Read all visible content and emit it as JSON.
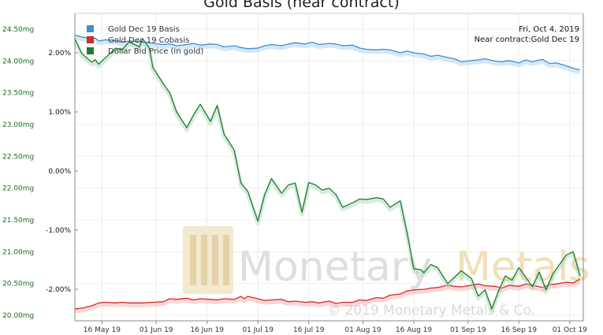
{
  "chart_data": {
    "type": "line",
    "title": "Gold Basis (near contract)",
    "info": [
      "Fri, Oct 4, 2019",
      "Near contract:Gold Dec 19"
    ],
    "watermark": {
      "brand_left": "Monetary",
      "brand_right": "Metals",
      "copyright": "© 2019 Monetary Metals & Co."
    },
    "left_axis": {
      "ticks": [
        "24.50mg",
        "24.00mg",
        "23.50mg",
        "23.00mg",
        "22.50mg",
        "22.00mg",
        "21.50mg",
        "21.00mg",
        "20.50mg",
        "20.00mg"
      ],
      "min": 20.0,
      "max": 24.5,
      "color": "#1e6b2c"
    },
    "right_axis": {
      "ticks": [
        "2.00%",
        "1.00%",
        "0.00%",
        "-1.00%",
        "-2.00%"
      ],
      "values": [
        2,
        1,
        0,
        -1,
        -2
      ],
      "color": "#111111"
    },
    "x_ticks": [
      "16 May 19",
      "01 Jun 19",
      "16 Jun 19",
      "01 Jul 19",
      "16 Jul 19",
      "01 Aug 19",
      "16 Aug 19",
      "01 Sep 19",
      "16 Sep 19",
      "01 Oct 19"
    ],
    "x_range": [
      "2019-05-08",
      "2019-10-05"
    ],
    "series": [
      {
        "name": "Gold Dec 19 Basis",
        "axis": "right",
        "color": "#3b8fd4",
        "points": [
          [
            "2019-05-08",
            2.3
          ],
          [
            "2019-05-10",
            2.27
          ],
          [
            "2019-05-13",
            2.24
          ],
          [
            "2019-05-14",
            2.25
          ],
          [
            "2019-05-15",
            2.2
          ],
          [
            "2019-05-17",
            2.22
          ],
          [
            "2019-05-20",
            2.21
          ],
          [
            "2019-05-22",
            2.18
          ],
          [
            "2019-05-24",
            2.2
          ],
          [
            "2019-05-28",
            2.19
          ],
          [
            "2019-05-31",
            2.16
          ],
          [
            "2019-06-03",
            2.14
          ],
          [
            "2019-06-05",
            2.15
          ],
          [
            "2019-06-07",
            2.12
          ],
          [
            "2019-06-10",
            2.14
          ],
          [
            "2019-06-12",
            2.16
          ],
          [
            "2019-06-14",
            2.13
          ],
          [
            "2019-06-17",
            2.15
          ],
          [
            "2019-06-19",
            2.14
          ],
          [
            "2019-06-21",
            2.1
          ],
          [
            "2019-06-24",
            2.12
          ],
          [
            "2019-06-26",
            2.09
          ],
          [
            "2019-06-28",
            2.07
          ],
          [
            "2019-07-01",
            2.08
          ],
          [
            "2019-07-03",
            2.12
          ],
          [
            "2019-07-05",
            2.14
          ],
          [
            "2019-07-08",
            2.12
          ],
          [
            "2019-07-10",
            2.15
          ],
          [
            "2019-07-12",
            2.17
          ],
          [
            "2019-07-15",
            2.15
          ],
          [
            "2019-07-17",
            2.18
          ],
          [
            "2019-07-19",
            2.14
          ],
          [
            "2019-07-22",
            2.16
          ],
          [
            "2019-07-24",
            2.15
          ],
          [
            "2019-07-26",
            2.12
          ],
          [
            "2019-07-29",
            2.13
          ],
          [
            "2019-07-31",
            2.08
          ],
          [
            "2019-08-02",
            2.06
          ],
          [
            "2019-08-05",
            2.05
          ],
          [
            "2019-08-07",
            2.06
          ],
          [
            "2019-08-09",
            2.05
          ],
          [
            "2019-08-12",
            2.0
          ],
          [
            "2019-08-14",
            2.03
          ],
          [
            "2019-08-16",
            2.0
          ],
          [
            "2019-08-19",
            1.98
          ],
          [
            "2019-08-21",
            1.94
          ],
          [
            "2019-08-23",
            1.96
          ],
          [
            "2019-08-26",
            1.92
          ],
          [
            "2019-08-28",
            1.9
          ],
          [
            "2019-08-30",
            1.85
          ],
          [
            "2019-09-02",
            1.87
          ],
          [
            "2019-09-04",
            1.88
          ],
          [
            "2019-09-06",
            1.9
          ],
          [
            "2019-09-09",
            1.86
          ],
          [
            "2019-09-11",
            1.85
          ],
          [
            "2019-09-13",
            1.87
          ],
          [
            "2019-09-16",
            1.83
          ],
          [
            "2019-09-18",
            1.88
          ],
          [
            "2019-09-20",
            1.85
          ],
          [
            "2019-09-23",
            1.89
          ],
          [
            "2019-09-25",
            1.82
          ],
          [
            "2019-09-27",
            1.83
          ],
          [
            "2019-09-30",
            1.78
          ],
          [
            "2019-10-02",
            1.74
          ],
          [
            "2019-10-04",
            1.71
          ]
        ]
      },
      {
        "name": "Gold Dec 19 Cobasis",
        "axis": "right",
        "color": "#d32a2a",
        "points": [
          [
            "2019-05-08",
            -2.33
          ],
          [
            "2019-05-10",
            -2.32
          ],
          [
            "2019-05-13",
            -2.28
          ],
          [
            "2019-05-15",
            -2.23
          ],
          [
            "2019-05-17",
            -2.22
          ],
          [
            "2019-05-20",
            -2.23
          ],
          [
            "2019-05-22",
            -2.22
          ],
          [
            "2019-05-24",
            -2.23
          ],
          [
            "2019-05-28",
            -2.23
          ],
          [
            "2019-05-31",
            -2.22
          ],
          [
            "2019-06-03",
            -2.21
          ],
          [
            "2019-06-05",
            -2.16
          ],
          [
            "2019-06-07",
            -2.17
          ],
          [
            "2019-06-10",
            -2.15
          ],
          [
            "2019-06-12",
            -2.18
          ],
          [
            "2019-06-14",
            -2.16
          ],
          [
            "2019-06-17",
            -2.17
          ],
          [
            "2019-06-19",
            -2.18
          ],
          [
            "2019-06-21",
            -2.16
          ],
          [
            "2019-06-24",
            -2.17
          ],
          [
            "2019-06-26",
            -2.12
          ],
          [
            "2019-06-27",
            -2.16
          ],
          [
            "2019-06-28",
            -2.12
          ],
          [
            "2019-07-01",
            -2.16
          ],
          [
            "2019-07-03",
            -2.19
          ],
          [
            "2019-07-05",
            -2.18
          ],
          [
            "2019-07-08",
            -2.17
          ],
          [
            "2019-07-10",
            -2.21
          ],
          [
            "2019-07-12",
            -2.2
          ],
          [
            "2019-07-15",
            -2.22
          ],
          [
            "2019-07-17",
            -2.21
          ],
          [
            "2019-07-19",
            -2.23
          ],
          [
            "2019-07-22",
            -2.2
          ],
          [
            "2019-07-24",
            -2.24
          ],
          [
            "2019-07-26",
            -2.22
          ],
          [
            "2019-07-29",
            -2.22
          ],
          [
            "2019-07-31",
            -2.18
          ],
          [
            "2019-08-02",
            -2.19
          ],
          [
            "2019-08-05",
            -2.14
          ],
          [
            "2019-08-07",
            -2.15
          ],
          [
            "2019-08-09",
            -2.1
          ],
          [
            "2019-08-12",
            -2.08
          ],
          [
            "2019-08-14",
            -2.03
          ],
          [
            "2019-08-16",
            -2.01
          ],
          [
            "2019-08-19",
            -2.0
          ],
          [
            "2019-08-21",
            -1.98
          ],
          [
            "2019-08-23",
            -1.97
          ],
          [
            "2019-08-26",
            -1.93
          ],
          [
            "2019-08-28",
            -1.95
          ],
          [
            "2019-08-30",
            -1.96
          ],
          [
            "2019-09-02",
            -1.93
          ],
          [
            "2019-09-04",
            -1.91
          ],
          [
            "2019-09-06",
            -1.94
          ],
          [
            "2019-09-09",
            -1.95
          ],
          [
            "2019-09-11",
            -1.98
          ],
          [
            "2019-09-13",
            -1.93
          ],
          [
            "2019-09-16",
            -1.95
          ],
          [
            "2019-09-18",
            -1.91
          ],
          [
            "2019-09-20",
            -1.93
          ],
          [
            "2019-09-23",
            -1.97
          ],
          [
            "2019-09-25",
            -1.92
          ],
          [
            "2019-09-27",
            -1.91
          ],
          [
            "2019-09-30",
            -1.88
          ],
          [
            "2019-10-02",
            -1.89
          ],
          [
            "2019-10-04",
            -1.83
          ]
        ]
      },
      {
        "name": "Dollar Bid Price (in gold)",
        "axis": "left",
        "color": "#1f7a35",
        "points": [
          [
            "2019-05-08",
            24.35
          ],
          [
            "2019-05-10",
            24.12
          ],
          [
            "2019-05-13",
            23.98
          ],
          [
            "2019-05-14",
            24.02
          ],
          [
            "2019-05-15",
            23.95
          ],
          [
            "2019-05-17",
            24.05
          ],
          [
            "2019-05-20",
            24.2
          ],
          [
            "2019-05-22",
            24.18
          ],
          [
            "2019-05-24",
            24.3
          ],
          [
            "2019-05-27",
            24.22
          ],
          [
            "2019-05-28",
            24.35
          ],
          [
            "2019-05-30",
            24.2
          ],
          [
            "2019-05-31",
            23.9
          ],
          [
            "2019-06-03",
            23.65
          ],
          [
            "2019-06-05",
            23.5
          ],
          [
            "2019-06-07",
            23.2
          ],
          [
            "2019-06-10",
            22.95
          ],
          [
            "2019-06-12",
            23.15
          ],
          [
            "2019-06-14",
            23.32
          ],
          [
            "2019-06-17",
            23.05
          ],
          [
            "2019-06-19",
            23.3
          ],
          [
            "2019-06-21",
            22.85
          ],
          [
            "2019-06-24",
            22.6
          ],
          [
            "2019-06-26",
            22.08
          ],
          [
            "2019-06-28",
            21.95
          ],
          [
            "2019-07-01",
            21.48
          ],
          [
            "2019-07-03",
            21.9
          ],
          [
            "2019-07-05",
            22.15
          ],
          [
            "2019-07-08",
            21.92
          ],
          [
            "2019-07-10",
            22.05
          ],
          [
            "2019-07-12",
            22.08
          ],
          [
            "2019-07-14",
            21.62
          ],
          [
            "2019-07-16",
            22.09
          ],
          [
            "2019-07-18",
            22.05
          ],
          [
            "2019-07-20",
            21.97
          ],
          [
            "2019-07-22",
            22.0
          ],
          [
            "2019-07-24",
            21.9
          ],
          [
            "2019-07-26",
            21.7
          ],
          [
            "2019-07-29",
            21.77
          ],
          [
            "2019-07-31",
            21.83
          ],
          [
            "2019-08-02",
            21.82
          ],
          [
            "2019-08-05",
            21.85
          ],
          [
            "2019-08-07",
            21.83
          ],
          [
            "2019-08-09",
            21.7
          ],
          [
            "2019-08-12",
            21.8
          ],
          [
            "2019-08-14",
            21.3
          ],
          [
            "2019-08-16",
            20.73
          ],
          [
            "2019-08-18",
            20.72
          ],
          [
            "2019-08-19",
            20.67
          ],
          [
            "2019-08-21",
            20.8
          ],
          [
            "2019-08-23",
            20.75
          ],
          [
            "2019-08-26",
            20.5
          ],
          [
            "2019-08-28",
            20.6
          ],
          [
            "2019-08-30",
            20.7
          ],
          [
            "2019-09-02",
            20.58
          ],
          [
            "2019-09-04",
            20.3
          ],
          [
            "2019-09-06",
            20.4
          ],
          [
            "2019-09-08",
            20.1
          ],
          [
            "2019-09-10",
            20.38
          ],
          [
            "2019-09-12",
            20.62
          ],
          [
            "2019-09-14",
            20.55
          ],
          [
            "2019-09-16",
            20.75
          ],
          [
            "2019-09-18",
            20.6
          ],
          [
            "2019-09-20",
            20.45
          ],
          [
            "2019-09-22",
            20.68
          ],
          [
            "2019-09-24",
            20.4
          ],
          [
            "2019-09-26",
            20.65
          ],
          [
            "2019-09-28",
            20.8
          ],
          [
            "2019-09-30",
            20.95
          ],
          [
            "2019-10-02",
            21.0
          ],
          [
            "2019-10-03",
            20.82
          ],
          [
            "2019-10-04",
            20.62
          ]
        ]
      }
    ]
  }
}
